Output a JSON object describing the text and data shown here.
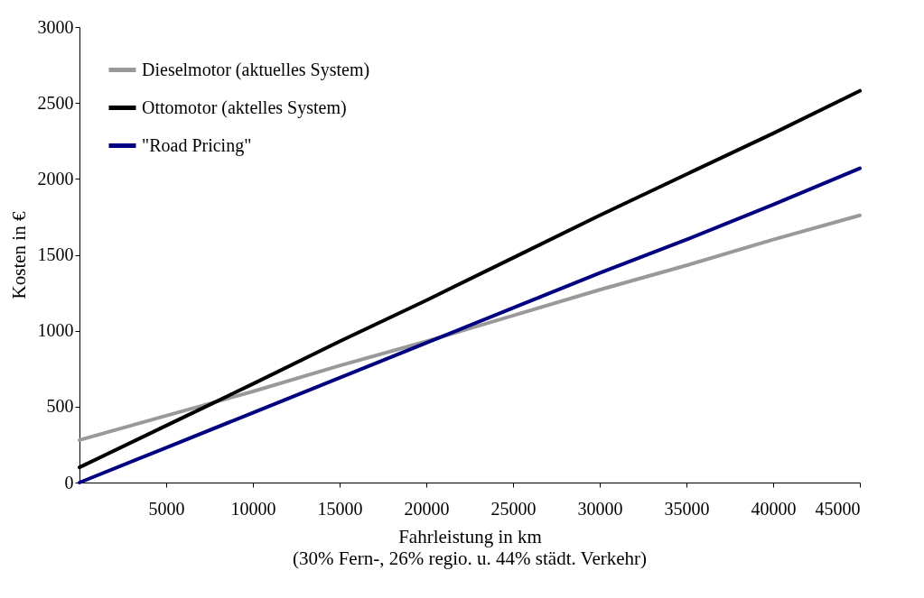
{
  "chart_data": {
    "type": "line",
    "xlabel": "Fahrleistung in km",
    "ylabel": "Kosten in €",
    "annotations": [
      "(30% Fern-, 26% regio. u. 44% städt. Verkehr)"
    ],
    "x": [
      0,
      5000,
      10000,
      15000,
      20000,
      25000,
      30000,
      35000,
      40000,
      45000
    ],
    "series": [
      {
        "name": "Dieselmotor (aktuelles System)",
        "color": "#999999",
        "values": [
          280,
          440,
          600,
          770,
          930,
          1100,
          1270,
          1430,
          1600,
          1760
        ]
      },
      {
        "name": "Ottomotor (aktelles System)",
        "color": "#000000",
        "values": [
          100,
          375,
          650,
          930,
          1200,
          1480,
          1760,
          2030,
          2300,
          2580
        ]
      },
      {
        "name": "\"Road Pricing\"",
        "color": "#000080",
        "values": [
          0,
          230,
          460,
          690,
          920,
          1150,
          1380,
          1600,
          1830,
          2070
        ]
      }
    ],
    "xlim": [
      0,
      45000
    ],
    "xticks": [
      5000,
      10000,
      15000,
      20000,
      25000,
      30000,
      35000,
      40000,
      45000
    ],
    "ylim": [
      0,
      3000
    ],
    "yticks": [
      0,
      500,
      1000,
      1500,
      2000,
      2500,
      3000
    ],
    "grid": false,
    "legend": "top left",
    "marker": "none",
    "line_style": "solid"
  }
}
